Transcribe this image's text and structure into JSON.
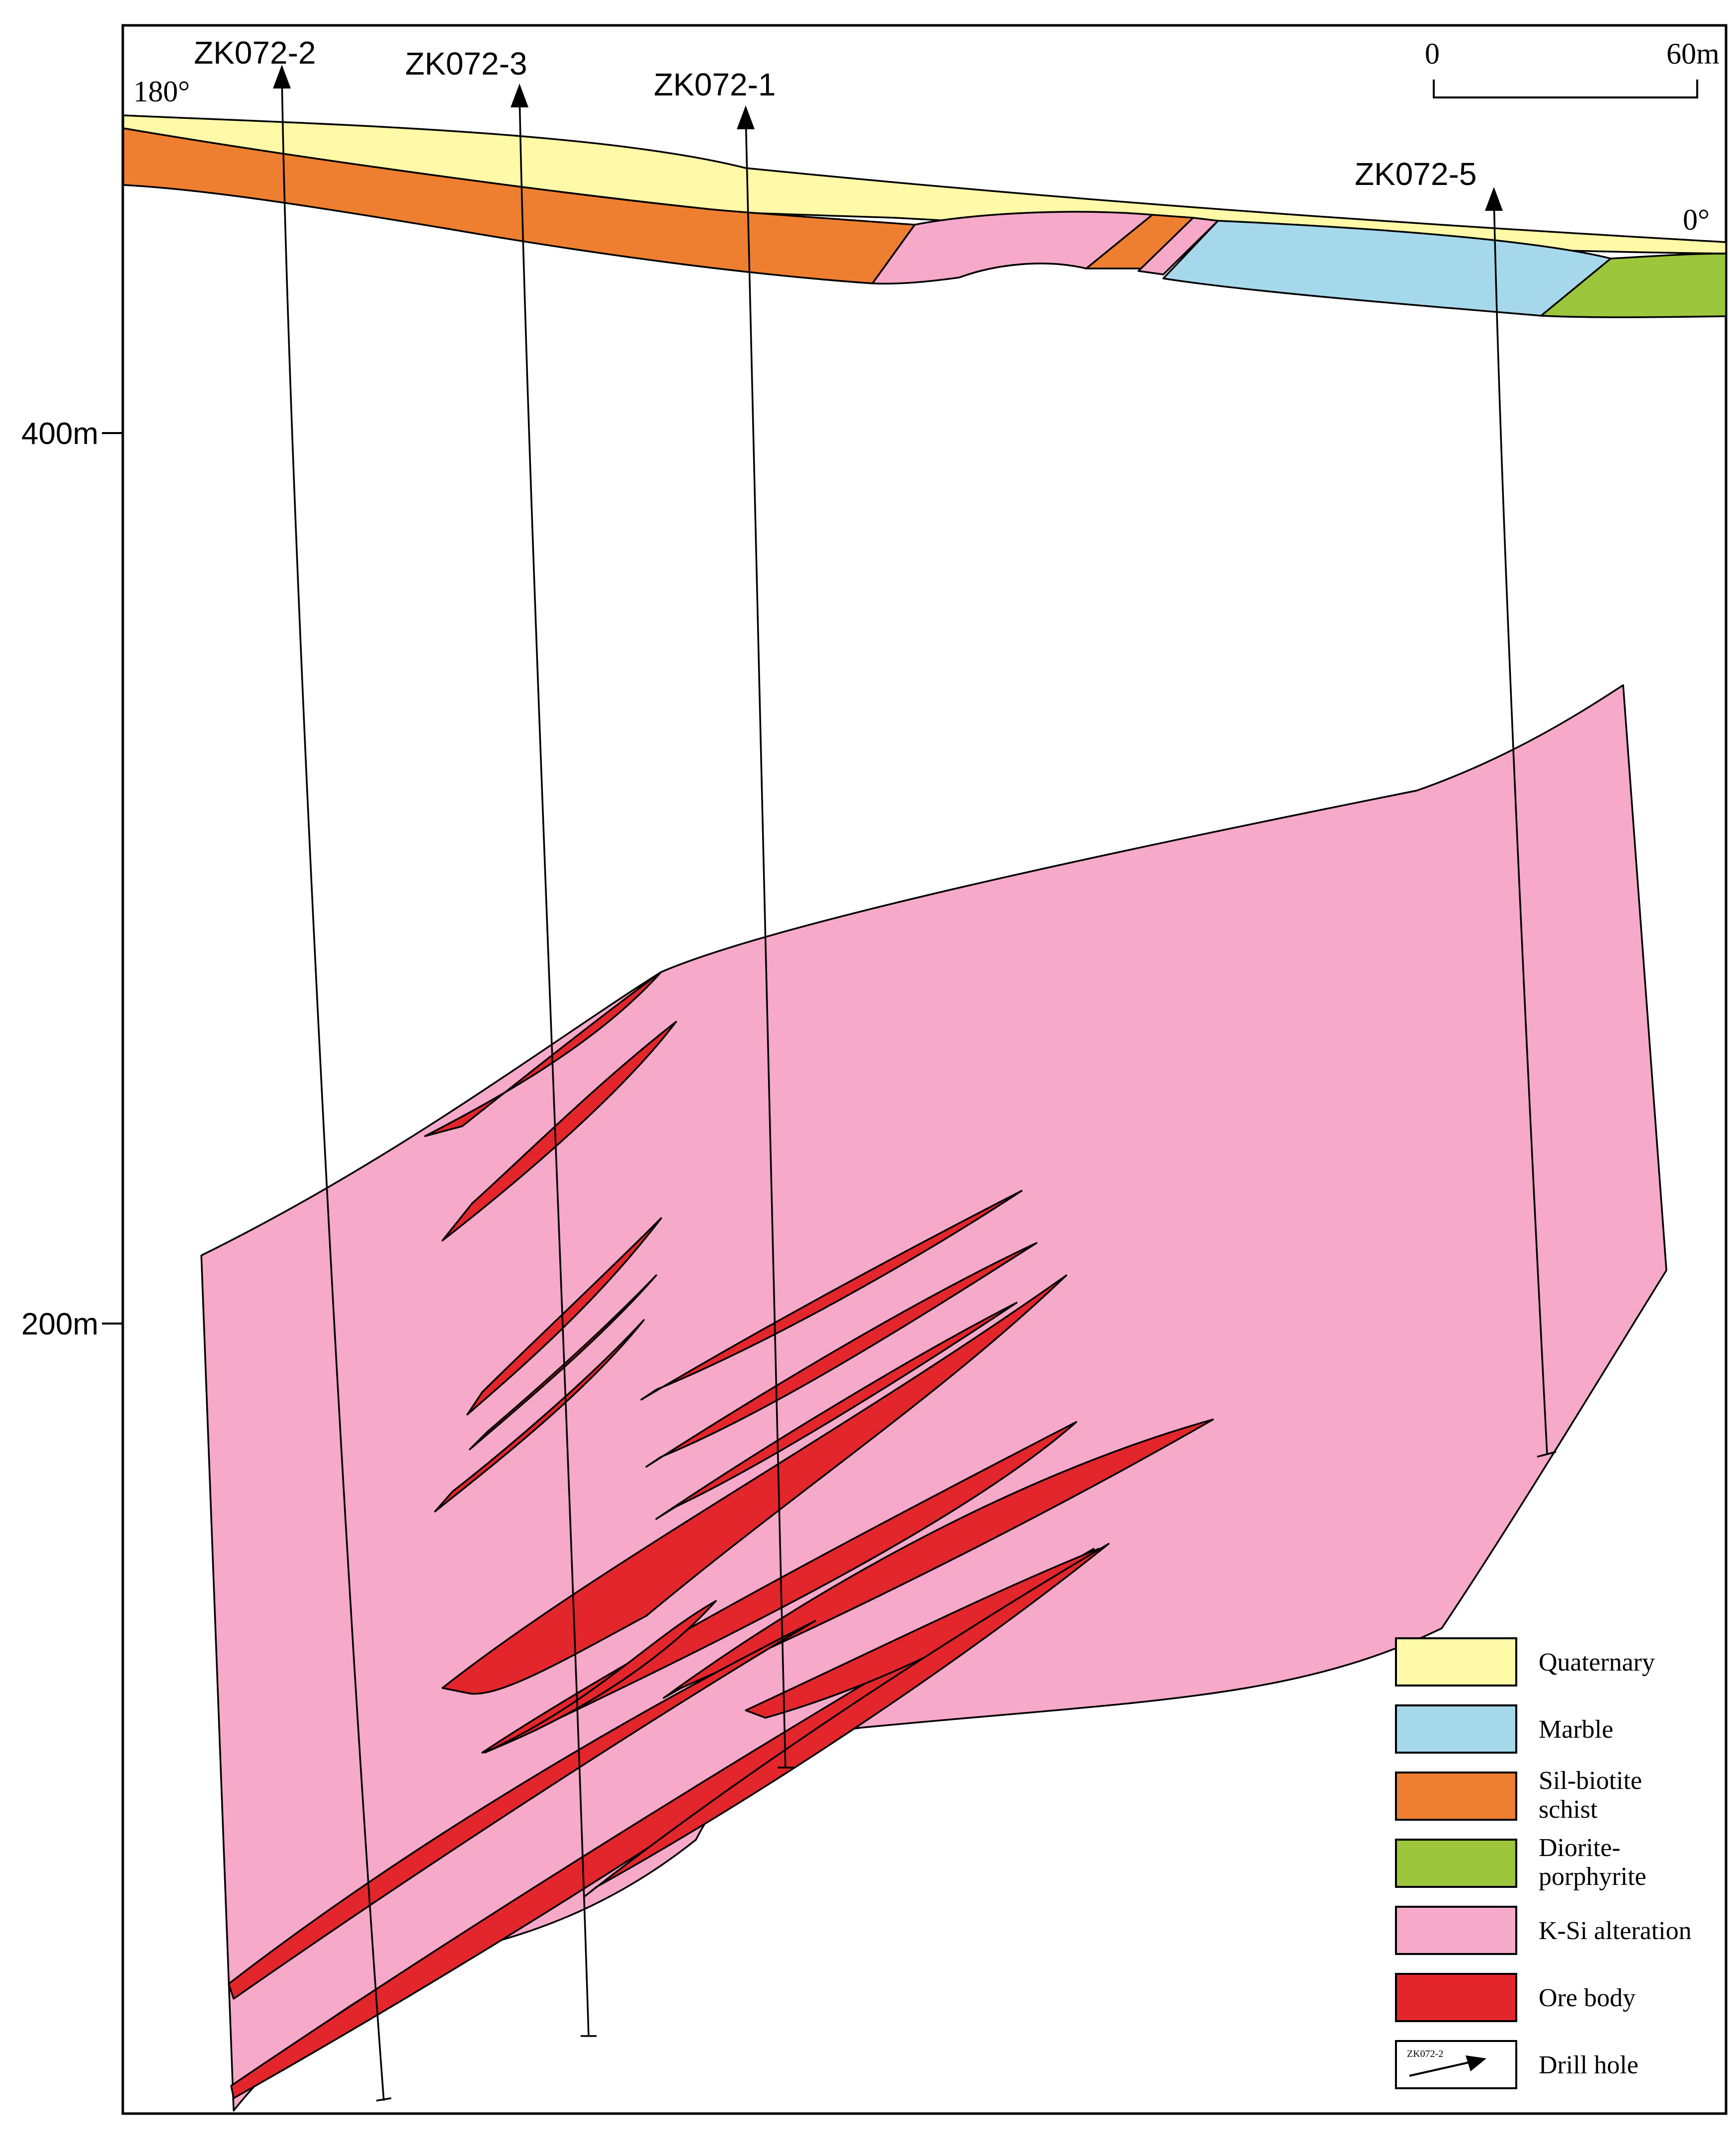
{
  "orientation": {
    "left": "180°",
    "right": "0°"
  },
  "scale_bar": {
    "start": "0",
    "end": "60m"
  },
  "elevation_ticks": [
    {
      "label": "400m",
      "value": 400
    },
    {
      "label": "200m",
      "value": 200
    }
  ],
  "drill_holes": [
    {
      "id": "zk072-2",
      "label": "ZK072-2"
    },
    {
      "id": "zk072-3",
      "label": "ZK072-3"
    },
    {
      "id": "zk072-1",
      "label": "ZK072-1"
    },
    {
      "id": "zk072-5",
      "label": "ZK072-5"
    }
  ],
  "colors": {
    "quaternary": "#fff9a8",
    "marble": "#a6d8ec",
    "schist": "#ee7f31",
    "diorite": "#9cc63b",
    "alteration": "#f6a9c9",
    "ore": "#e3262c"
  },
  "legend": {
    "items": [
      {
        "key": "quaternary",
        "label": [
          "Quaternary"
        ]
      },
      {
        "key": "marble",
        "label": [
          "Marble"
        ]
      },
      {
        "key": "schist",
        "label": [
          "Sil-biotite",
          "schist"
        ]
      },
      {
        "key": "diorite",
        "label": [
          "Diorite-",
          "porphyrite"
        ]
      },
      {
        "key": "alteration",
        "label": [
          "K-Si alteration"
        ]
      },
      {
        "key": "ore",
        "label": [
          "Ore body"
        ]
      },
      {
        "key": "drill_hole",
        "label": [
          "Drill hole"
        ],
        "icon_text": "ZK072-2"
      }
    ]
  }
}
